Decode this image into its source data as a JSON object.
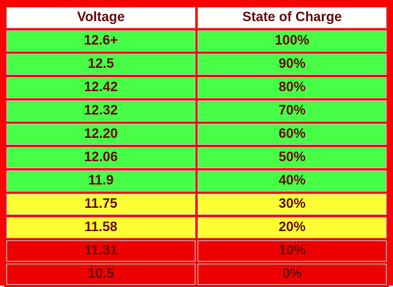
{
  "table": {
    "headers": [
      "Voltage",
      "State of Charge"
    ],
    "rows": [
      {
        "voltage": "12.6+",
        "charge": "100%",
        "color": "#47ff47"
      },
      {
        "voltage": "12.5",
        "charge": "90%",
        "color": "#47ff47"
      },
      {
        "voltage": "12.42",
        "charge": "80%",
        "color": "#47ff47"
      },
      {
        "voltage": "12.32",
        "charge": "70%",
        "color": "#47ff47"
      },
      {
        "voltage": "12.20",
        "charge": "60%",
        "color": "#47ff47"
      },
      {
        "voltage": "12.06",
        "charge": "50%",
        "color": "#47ff47"
      },
      {
        "voltage": "11.9",
        "charge": "40%",
        "color": "#47ff47"
      },
      {
        "voltage": "11.75",
        "charge": "30%",
        "color": "#ffff33"
      },
      {
        "voltage": "11.58",
        "charge": "20%",
        "color": "#ffff33"
      },
      {
        "voltage": "11.31",
        "charge": "10%",
        "color": "#ee0000"
      },
      {
        "voltage": "10.5",
        "charge": "0%",
        "color": "#ee0000"
      }
    ]
  },
  "colors": {
    "border": "#ff0000",
    "text": "#6a0a0a",
    "header_bg": "#ffffff"
  }
}
